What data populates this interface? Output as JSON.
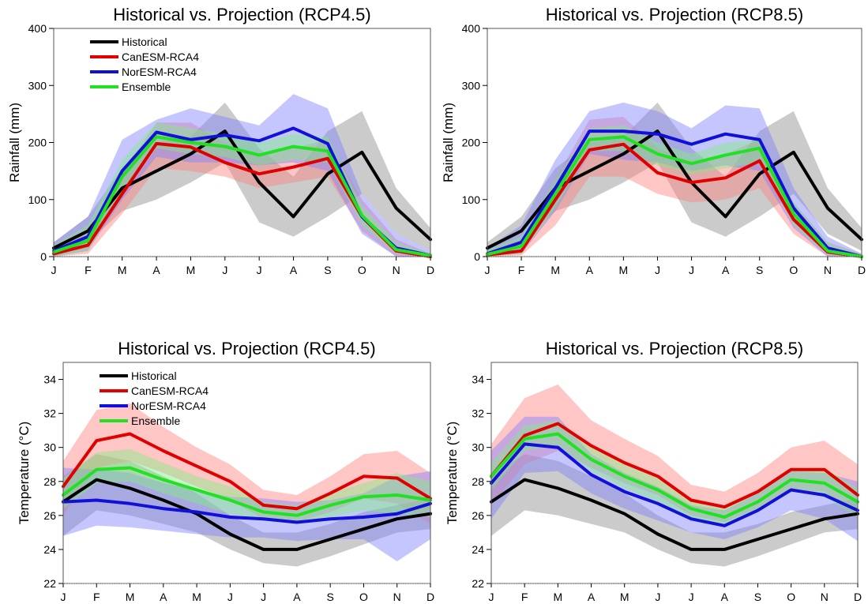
{
  "months": [
    "J",
    "F",
    "M",
    "A",
    "M",
    "J",
    "J",
    "A",
    "S",
    "O",
    "N",
    "D"
  ],
  "legend_entries": [
    "Historical",
    "CanESM-RCA4",
    "NorESM-RCA4",
    "Ensemble"
  ],
  "colors": {
    "Historical": "#000000",
    "CanESM-RCA4": "#e00000",
    "NorESM-RCA4": "#1010d8",
    "Ensemble": "#22e022"
  },
  "band_colors": {
    "Historical": "#8c8c8c",
    "CanESM-RCA4": "#ff8080",
    "NorESM-RCA4": "#8080ff",
    "Ensemble": "#80ee80"
  },
  "chart_data": [
    {
      "type": "area",
      "title": "Historical vs. Projection (RCP4.5)",
      "xlabel": "",
      "ylabel": "Rainfall (mm)",
      "ylim": [
        0,
        400
      ],
      "yticks": [
        0,
        100,
        200,
        300,
        400
      ],
      "grid": false,
      "legend": "top-left",
      "categories": [
        "J",
        "F",
        "M",
        "A",
        "M",
        "J",
        "J",
        "A",
        "S",
        "O",
        "N",
        "D"
      ],
      "series": [
        {
          "name": "Historical",
          "values": [
            15,
            45,
            120,
            150,
            180,
            220,
            130,
            70,
            145,
            183,
            85,
            30
          ],
          "lower": [
            5,
            25,
            80,
            100,
            130,
            165,
            60,
            35,
            70,
            110,
            40,
            10
          ],
          "upper": [
            25,
            70,
            155,
            200,
            210,
            270,
            190,
            140,
            220,
            255,
            120,
            50
          ]
        },
        {
          "name": "CanESM-RCA4",
          "values": [
            5,
            20,
            110,
            198,
            192,
            165,
            145,
            157,
            172,
            70,
            10,
            0
          ],
          "lower": [
            0,
            5,
            75,
            155,
            150,
            140,
            120,
            130,
            140,
            45,
            0,
            0
          ],
          "upper": [
            15,
            45,
            145,
            235,
            235,
            200,
            175,
            190,
            205,
            100,
            30,
            5
          ]
        },
        {
          "name": "NorESM-RCA4",
          "values": [
            10,
            35,
            150,
            218,
            205,
            213,
            203,
            225,
            198,
            70,
            15,
            2
          ],
          "lower": [
            0,
            10,
            100,
            175,
            165,
            165,
            160,
            165,
            150,
            40,
            0,
            0
          ],
          "upper": [
            25,
            70,
            205,
            240,
            260,
            245,
            230,
            285,
            260,
            110,
            40,
            10
          ]
        },
        {
          "name": "Ensemble",
          "values": [
            8,
            28,
            140,
            210,
            200,
            193,
            178,
            193,
            185,
            72,
            12,
            2
          ],
          "lower": [
            0,
            10,
            110,
            190,
            180,
            175,
            160,
            170,
            165,
            55,
            5,
            0
          ],
          "upper": [
            20,
            55,
            170,
            235,
            225,
            215,
            200,
            215,
            210,
            90,
            25,
            5
          ]
        }
      ]
    },
    {
      "type": "area",
      "title": "Historical vs. Projection (RCP8.5)",
      "xlabel": "",
      "ylabel": "Rainfall (mm)",
      "ylim": [
        0,
        400
      ],
      "yticks": [
        0,
        100,
        200,
        300,
        400
      ],
      "grid": false,
      "legend": "",
      "categories": [
        "J",
        "F",
        "M",
        "A",
        "M",
        "J",
        "J",
        "A",
        "S",
        "O",
        "N",
        "D"
      ],
      "series": [
        {
          "name": "Historical",
          "values": [
            15,
            45,
            120,
            150,
            180,
            220,
            130,
            70,
            145,
            183,
            85,
            30
          ],
          "lower": [
            5,
            25,
            80,
            100,
            130,
            165,
            60,
            35,
            70,
            110,
            40,
            10
          ],
          "upper": [
            25,
            70,
            155,
            200,
            210,
            270,
            190,
            140,
            220,
            255,
            120,
            50
          ]
        },
        {
          "name": "CanESM-RCA4",
          "values": [
            3,
            10,
            100,
            187,
            197,
            147,
            130,
            138,
            168,
            65,
            8,
            0
          ],
          "lower": [
            0,
            2,
            55,
            140,
            140,
            110,
            95,
            100,
            120,
            40,
            0,
            0
          ],
          "upper": [
            10,
            30,
            135,
            240,
            245,
            190,
            165,
            180,
            205,
            95,
            25,
            5
          ]
        },
        {
          "name": "NorESM-RCA4",
          "values": [
            5,
            25,
            120,
            220,
            220,
            215,
            197,
            215,
            205,
            85,
            15,
            0
          ],
          "lower": [
            0,
            5,
            80,
            180,
            170,
            165,
            150,
            160,
            150,
            50,
            0,
            0
          ],
          "upper": [
            15,
            55,
            170,
            255,
            270,
            255,
            225,
            265,
            260,
            120,
            35,
            5
          ]
        },
        {
          "name": "Ensemble",
          "values": [
            4,
            18,
            110,
            205,
            210,
            180,
            163,
            178,
            190,
            75,
            10,
            0
          ],
          "lower": [
            0,
            5,
            85,
            185,
            185,
            160,
            145,
            155,
            165,
            55,
            3,
            0
          ],
          "upper": [
            12,
            35,
            135,
            225,
            230,
            200,
            180,
            200,
            205,
            95,
            25,
            3
          ]
        }
      ]
    },
    {
      "type": "area",
      "title": "Historical vs. Projection (RCP4.5)",
      "xlabel": "",
      "ylabel": "Temperature (°C)",
      "ylim": [
        22,
        35
      ],
      "yticks": [
        22,
        24,
        26,
        28,
        30,
        32,
        34
      ],
      "grid": false,
      "legend": "top-left",
      "categories": [
        "J",
        "F",
        "M",
        "A",
        "M",
        "J",
        "J",
        "A",
        "S",
        "O",
        "N",
        "D"
      ],
      "series": [
        {
          "name": "Historical",
          "values": [
            26.8,
            28.1,
            27.6,
            26.9,
            26.1,
            24.9,
            24.0,
            24.0,
            24.6,
            25.2,
            25.8,
            26.1
          ],
          "lower": [
            24.8,
            26.3,
            26.0,
            25.5,
            25.0,
            24.0,
            23.2,
            23.0,
            23.6,
            24.3,
            25.0,
            25.2
          ],
          "upper": [
            28.3,
            29.6,
            29.2,
            28.3,
            27.3,
            26.0,
            25.0,
            25.0,
            25.5,
            26.2,
            26.6,
            27.0
          ]
        },
        {
          "name": "CanESM-RCA4",
          "values": [
            27.7,
            30.4,
            30.8,
            29.8,
            28.9,
            28.0,
            26.6,
            26.4,
            27.3,
            28.3,
            28.2,
            27.0
          ],
          "lower": [
            26.0,
            28.8,
            29.2,
            28.5,
            27.7,
            26.9,
            25.8,
            25.6,
            26.2,
            27.0,
            26.7,
            25.5
          ],
          "upper": [
            29.2,
            32.2,
            32.6,
            31.2,
            30.0,
            29.0,
            27.5,
            27.2,
            28.3,
            29.6,
            29.8,
            28.5
          ]
        },
        {
          "name": "NorESM-RCA4",
          "values": [
            26.8,
            26.9,
            26.7,
            26.4,
            26.2,
            25.9,
            25.8,
            25.6,
            25.8,
            25.9,
            26.1,
            26.7
          ],
          "lower": [
            24.8,
            25.4,
            25.3,
            25.1,
            24.9,
            24.7,
            24.7,
            24.5,
            24.6,
            24.6,
            23.3,
            24.6
          ],
          "upper": [
            28.8,
            28.7,
            28.5,
            27.9,
            27.5,
            27.1,
            27.0,
            26.8,
            26.9,
            27.3,
            28.3,
            28.6
          ]
        },
        {
          "name": "Ensemble",
          "values": [
            27.2,
            28.7,
            28.8,
            28.1,
            27.5,
            26.9,
            26.2,
            26.0,
            26.6,
            27.1,
            27.2,
            26.9
          ],
          "lower": [
            26.4,
            27.9,
            28.0,
            27.3,
            26.7,
            26.1,
            25.7,
            25.5,
            25.9,
            26.3,
            26.1,
            25.9
          ],
          "upper": [
            28.2,
            29.7,
            29.9,
            29.1,
            28.3,
            27.7,
            26.8,
            26.6,
            27.3,
            27.9,
            28.5,
            28.0
          ]
        }
      ]
    },
    {
      "type": "area",
      "title": "Historical vs. Projection (RCP8.5)",
      "xlabel": "",
      "ylabel": "Temperature (°C)",
      "ylim": [
        22,
        35
      ],
      "yticks": [
        22,
        24,
        26,
        28,
        30,
        32,
        34
      ],
      "grid": false,
      "legend": "",
      "categories": [
        "J",
        "F",
        "M",
        "A",
        "M",
        "J",
        "J",
        "A",
        "S",
        "O",
        "N",
        "D"
      ],
      "series": [
        {
          "name": "Historical",
          "values": [
            26.8,
            28.1,
            27.6,
            26.9,
            26.1,
            24.9,
            24.0,
            24.0,
            24.6,
            25.2,
            25.8,
            26.1
          ],
          "lower": [
            24.8,
            26.3,
            26.0,
            25.5,
            25.0,
            24.0,
            23.2,
            23.0,
            23.6,
            24.3,
            25.0,
            25.2
          ],
          "upper": [
            28.3,
            29.6,
            29.2,
            28.3,
            27.3,
            26.0,
            25.0,
            25.0,
            25.5,
            26.2,
            26.6,
            27.0
          ]
        },
        {
          "name": "CanESM-RCA4",
          "values": [
            28.3,
            30.7,
            31.4,
            30.1,
            29.1,
            28.3,
            26.9,
            26.5,
            27.4,
            28.7,
            28.7,
            27.2
          ],
          "lower": [
            26.6,
            29.0,
            29.8,
            28.8,
            27.9,
            27.2,
            26.0,
            25.6,
            26.4,
            27.5,
            27.4,
            25.8
          ],
          "upper": [
            30.2,
            32.9,
            33.7,
            31.6,
            30.5,
            29.5,
            27.8,
            27.4,
            28.5,
            30.0,
            30.4,
            29.0
          ]
        },
        {
          "name": "NorESM-RCA4",
          "values": [
            27.9,
            30.2,
            30.0,
            28.4,
            27.4,
            26.7,
            25.8,
            25.4,
            26.3,
            27.5,
            27.2,
            26.3
          ],
          "lower": [
            25.8,
            28.5,
            28.6,
            27.3,
            26.4,
            25.7,
            25.0,
            24.6,
            25.3,
            26.3,
            25.8,
            24.5
          ],
          "upper": [
            29.8,
            31.8,
            31.8,
            29.6,
            28.5,
            27.7,
            26.6,
            26.3,
            27.3,
            28.6,
            28.5,
            28.0
          ]
        },
        {
          "name": "Ensemble",
          "values": [
            28.3,
            30.5,
            30.8,
            29.3,
            28.3,
            27.5,
            26.4,
            25.9,
            26.8,
            28.1,
            27.9,
            26.8
          ],
          "lower": [
            27.5,
            29.8,
            30.1,
            28.6,
            27.6,
            26.8,
            25.8,
            25.3,
            26.2,
            27.4,
            27.1,
            25.9
          ],
          "upper": [
            29.1,
            31.3,
            31.6,
            30.0,
            29.0,
            28.2,
            27.0,
            26.5,
            27.4,
            28.8,
            28.8,
            27.6
          ]
        }
      ]
    }
  ]
}
